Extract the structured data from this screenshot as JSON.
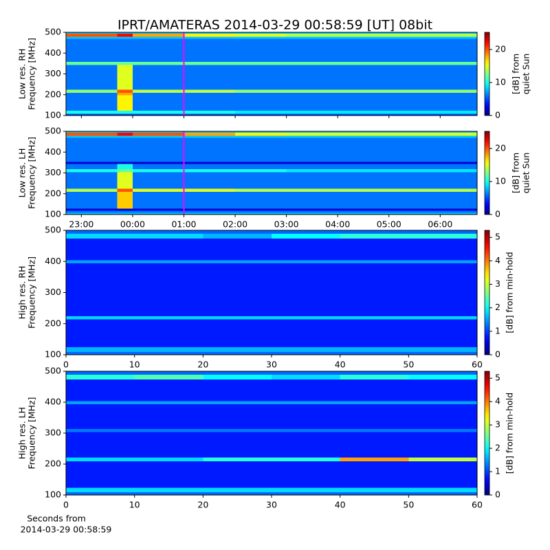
{
  "title": "IPRT/AMATERAS 2014-03-29 00:58:59 [UT]   08bit",
  "chart_data": [
    {
      "type": "heatmap",
      "ylabel": [
        "Low res. RH",
        "Frequency [MHz]"
      ],
      "colorbar_label": [
        "[dB] from",
        "quiet Sun"
      ],
      "xlim": [
        22.7,
        30.72
      ],
      "xticks": [
        23,
        24,
        25,
        26,
        27,
        28,
        29,
        30
      ],
      "ylim": [
        100,
        500
      ],
      "yticks": [
        100,
        200,
        300,
        400,
        500
      ],
      "clim": [
        0,
        25.2
      ],
      "cticks": [
        0,
        10,
        20
      ],
      "colormap": "jet",
      "vline": {
        "value": 25,
        "color": "#ff00ff"
      },
      "xbins": [
        22.7,
        23.7,
        24.0,
        25,
        26,
        27,
        28,
        29,
        30.72
      ],
      "ybins": [
        100,
        110,
        125,
        200,
        210,
        225,
        345,
        360,
        470,
        480,
        495,
        500
      ],
      "values": [
        [
          5,
          5,
          5,
          5,
          5,
          5,
          5,
          5
        ],
        [
          10,
          10,
          10,
          10,
          9,
          9,
          9,
          9
        ],
        [
          6,
          16,
          6,
          6,
          6,
          6,
          6,
          6
        ],
        [
          6,
          18,
          6,
          6,
          6,
          6,
          6,
          6
        ],
        [
          13,
          20,
          14,
          14,
          13,
          13,
          13,
          13
        ],
        [
          6,
          15,
          6,
          6,
          6,
          6,
          6,
          6
        ],
        [
          12,
          12,
          12,
          12,
          12,
          12,
          12,
          12
        ],
        [
          6,
          6,
          6,
          6,
          6,
          6,
          6,
          6
        ],
        [
          8,
          8,
          8,
          8,
          8,
          8,
          8,
          8
        ],
        [
          20,
          22,
          18,
          16,
          15,
          14,
          14,
          14
        ],
        [
          8,
          8,
          8,
          8,
          8,
          8,
          8,
          8
        ]
      ]
    },
    {
      "type": "heatmap",
      "ylabel": [
        "Low res. LH",
        "Frequency [MHz]"
      ],
      "colorbar_label": [
        "[dB] from",
        "quiet Sun"
      ],
      "xlim": [
        22.7,
        30.72
      ],
      "xticks": [
        {
          "value": 23,
          "label": "23:00"
        },
        {
          "value": 24,
          "label": "00:00"
        },
        {
          "value": 25,
          "label": "01:00"
        },
        {
          "value": 26,
          "label": "02:00"
        },
        {
          "value": 27,
          "label": "03:00"
        },
        {
          "value": 28,
          "label": "04:00"
        },
        {
          "value": 29,
          "label": "05:00"
        },
        {
          "value": 30,
          "label": "06:00"
        }
      ],
      "ylim": [
        100,
        500
      ],
      "yticks": [
        100,
        200,
        300,
        400,
        500
      ],
      "clim": [
        0,
        25.2
      ],
      "cticks": [
        0,
        10,
        20
      ],
      "colormap": "jet",
      "vline": {
        "value": 25,
        "color": "#ff00ff"
      },
      "xbins": [
        22.7,
        23.7,
        24.0,
        25,
        26,
        27,
        28,
        29,
        30.72
      ],
      "ybins": [
        100,
        110,
        120,
        130,
        210,
        225,
        305,
        320,
        345,
        355,
        470,
        480,
        495,
        500
      ],
      "values": [
        [
          8,
          8,
          8,
          8,
          8,
          8,
          8,
          8
        ],
        [
          6,
          6,
          6,
          6,
          6,
          6,
          6,
          6
        ],
        [
          2,
          2,
          2,
          2,
          2,
          2,
          2,
          2
        ],
        [
          6,
          17,
          6,
          6,
          6,
          6,
          6,
          6
        ],
        [
          14,
          20,
          15,
          15,
          14,
          14,
          14,
          14
        ],
        [
          6,
          15,
          6,
          6,
          6,
          6,
          6,
          6
        ],
        [
          10,
          12,
          10,
          10,
          10,
          9,
          9,
          9
        ],
        [
          6,
          10,
          6,
          6,
          6,
          6,
          6,
          6
        ],
        [
          2,
          2,
          2,
          2,
          2,
          2,
          2,
          2
        ],
        [
          6,
          6,
          6,
          6,
          6,
          6,
          6,
          6
        ],
        [
          8,
          8,
          8,
          8,
          8,
          8,
          8,
          8
        ],
        [
          20,
          22,
          20,
          18,
          16,
          15,
          15,
          15
        ],
        [
          8,
          8,
          8,
          8,
          8,
          8,
          8,
          8
        ]
      ]
    },
    {
      "type": "heatmap",
      "ylabel": [
        "High res. RH",
        "Frequency [MHz]"
      ],
      "colorbar_label": [
        "[dB] from min-hold"
      ],
      "xlim": [
        0,
        60
      ],
      "xticks": [
        0,
        10,
        20,
        30,
        40,
        50,
        60
      ],
      "ylim": [
        100,
        500
      ],
      "yticks": [
        100,
        200,
        300,
        400,
        500
      ],
      "clim": [
        0,
        5.3
      ],
      "cticks": [
        0,
        1,
        2,
        3,
        4,
        5
      ],
      "colormap": "jet",
      "xbins": [
        0,
        10,
        20,
        30,
        40,
        50,
        60
      ],
      "ybins": [
        100,
        110,
        125,
        215,
        225,
        395,
        405,
        475,
        490,
        500
      ],
      "values": [
        [
          1.2,
          1.2,
          1.2,
          1.2,
          1.2,
          1.2
        ],
        [
          1.6,
          1.6,
          1.6,
          1.6,
          1.6,
          1.6
        ],
        [
          0.8,
          0.8,
          0.8,
          0.8,
          0.8,
          0.8
        ],
        [
          1.8,
          1.8,
          1.8,
          1.8,
          1.8,
          1.8
        ],
        [
          0.8,
          0.8,
          0.8,
          0.8,
          0.8,
          0.8
        ],
        [
          1.5,
          1.5,
          1.5,
          1.5,
          1.5,
          1.5
        ],
        [
          0.8,
          0.8,
          0.8,
          0.8,
          0.8,
          0.8
        ],
        [
          1.8,
          1.8,
          1.6,
          2.0,
          2.2,
          2.2
        ],
        [
          1.2,
          1.2,
          1.2,
          1.2,
          1.2,
          1.2
        ]
      ]
    },
    {
      "type": "heatmap",
      "ylabel": [
        "High res. LH",
        "Frequency [MHz]"
      ],
      "colorbar_label": [
        "[dB] from min-hold"
      ],
      "xlabel": [
        "Seconds from",
        "2014-03-29 00:58:59"
      ],
      "xlim": [
        0,
        60
      ],
      "xticks": [
        0,
        10,
        20,
        30,
        40,
        50,
        60
      ],
      "ylim": [
        100,
        500
      ],
      "yticks": [
        100,
        200,
        300,
        400,
        500
      ],
      "clim": [
        0,
        5.3
      ],
      "cticks": [
        0,
        1,
        2,
        3,
        4,
        5
      ],
      "colormap": "jet",
      "xbins": [
        0,
        10,
        20,
        30,
        40,
        50,
        60
      ],
      "ybins": [
        100,
        110,
        125,
        210,
        222,
        305,
        315,
        395,
        405,
        475,
        490,
        500
      ],
      "values": [
        [
          1.2,
          1.2,
          1.2,
          1.2,
          1.2,
          1.2
        ],
        [
          1.8,
          1.8,
          1.8,
          1.8,
          1.8,
          1.8
        ],
        [
          0.8,
          0.8,
          0.8,
          0.8,
          0.8,
          0.8
        ],
        [
          1.8,
          1.8,
          2.2,
          2.2,
          3.8,
          3.0
        ],
        [
          0.8,
          0.8,
          0.8,
          0.8,
          0.8,
          0.8
        ],
        [
          1.3,
          1.3,
          1.3,
          1.3,
          1.3,
          1.3
        ],
        [
          0.8,
          0.8,
          0.8,
          0.8,
          0.8,
          0.8
        ],
        [
          1.5,
          1.5,
          1.5,
          1.5,
          1.5,
          1.5
        ],
        [
          0.8,
          0.8,
          0.8,
          0.8,
          0.8,
          0.8
        ],
        [
          2.2,
          2.4,
          2.0,
          1.8,
          2.2,
          2.0
        ],
        [
          1.2,
          1.2,
          1.2,
          1.2,
          1.2,
          1.2
        ]
      ]
    }
  ]
}
